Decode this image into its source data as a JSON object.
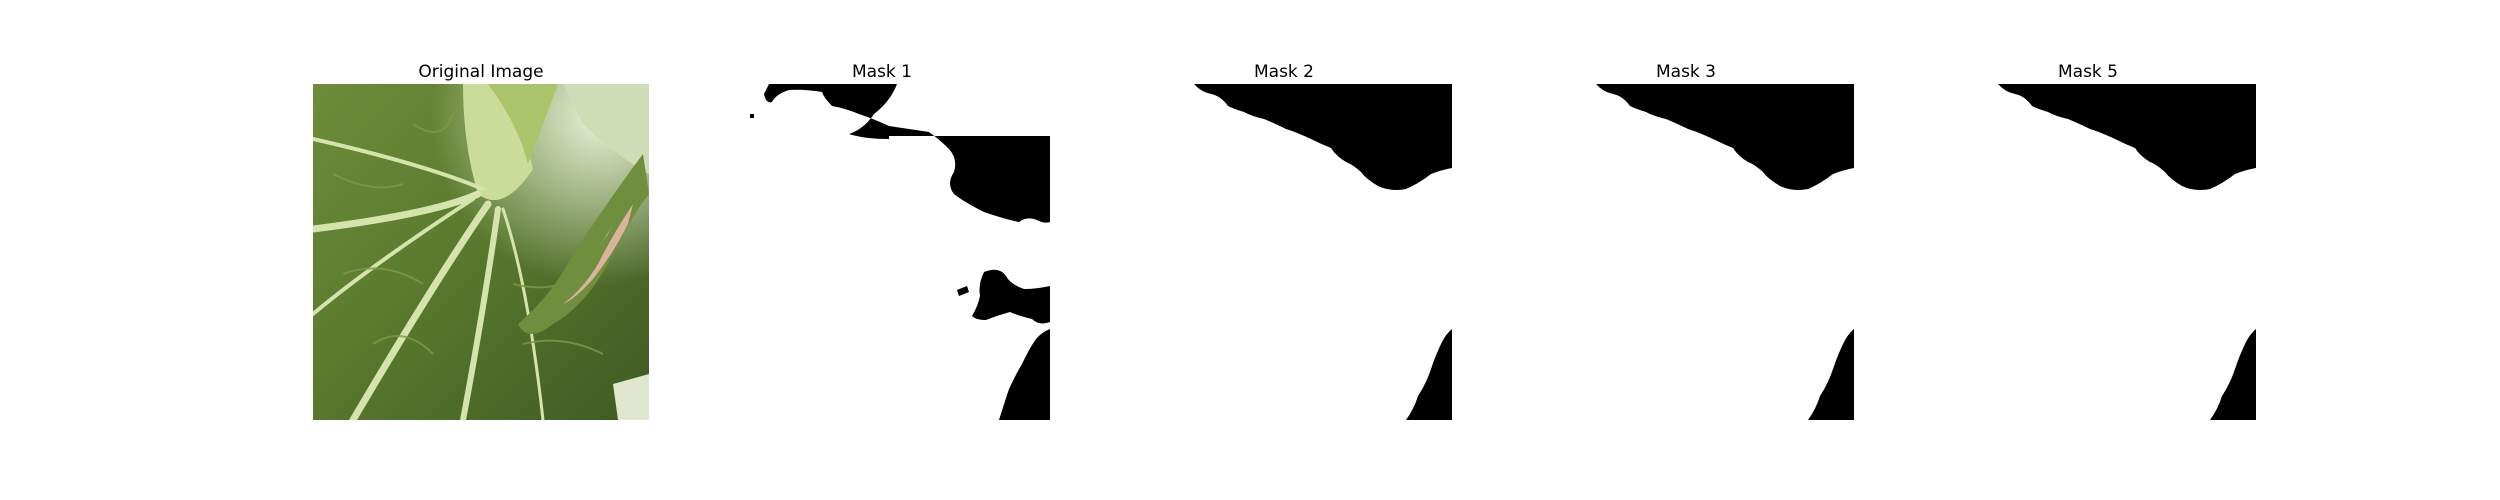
{
  "figure": {
    "panels": [
      {
        "title": "Original Image",
        "kind": "photo",
        "subject": "close-up of a green leaf with a pale midrib, branching veins and a torn brown-edged leaf fragment on the right"
      },
      {
        "title": "Mask 1",
        "kind": "mask"
      },
      {
        "title": "Mask 2",
        "kind": "mask"
      },
      {
        "title": "Mask 3",
        "kind": "mask"
      },
      {
        "title": "Mask 5",
        "kind": "mask"
      }
    ],
    "colors": {
      "background": "#ffffff",
      "mask_fill": "#000000",
      "leaf_dark": "#4f6a2c",
      "leaf_light": "#9fbf63",
      "vein": "#d9e6b2"
    }
  }
}
